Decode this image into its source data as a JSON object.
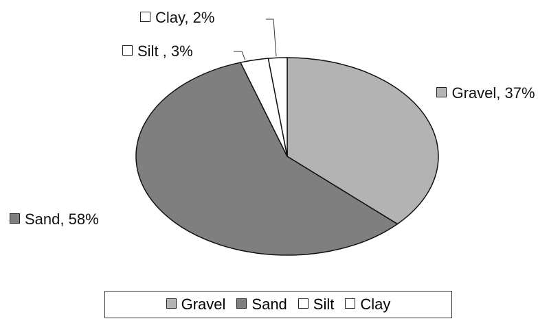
{
  "chart_data": {
    "type": "pie",
    "categories": [
      "Gravel",
      "Sand",
      "Silt",
      "Clay"
    ],
    "values": [
      37,
      58,
      3,
      2
    ],
    "value_labels": [
      "Gravel, 37%",
      "Sand, 58%",
      "Silt , 3%",
      "Clay, 2%"
    ],
    "colors": [
      "#b3b3b3",
      "#7f7f7f",
      "#ffffff",
      "#ffffff"
    ],
    "legend": "bottom"
  }
}
